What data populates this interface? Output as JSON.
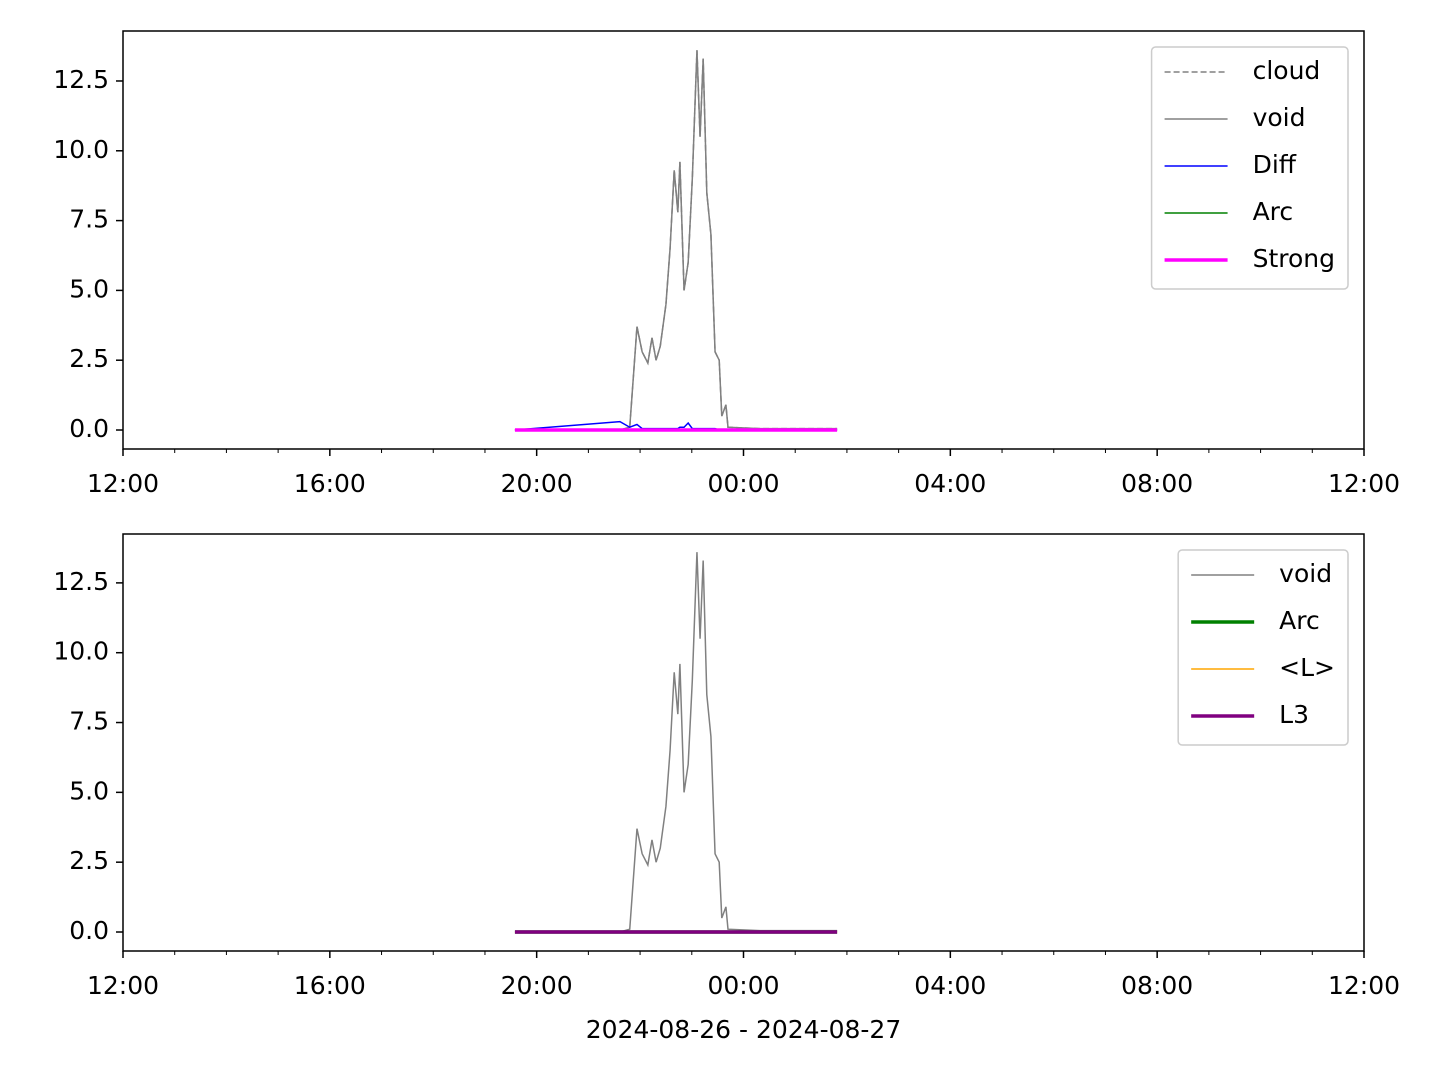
{
  "chart_data": [
    {
      "type": "line",
      "x": [
        19.58,
        21.61,
        21.8,
        21.94,
        22.04,
        22.15,
        22.23,
        22.31,
        22.39,
        22.5,
        22.58,
        22.66,
        22.73,
        22.77,
        22.85,
        22.93,
        23.01,
        23.1,
        23.16,
        23.22,
        23.29,
        23.37,
        23.45,
        23.53,
        23.58,
        23.66,
        23.7,
        24.32,
        25.09,
        25.81
      ],
      "series": [
        {
          "name": "cloud",
          "color": "#808080",
          "linestyle": "dashed",
          "linewidth": 1.5,
          "values": [
            0,
            0,
            0.1,
            3.7,
            2.8,
            2.4,
            3.3,
            2.5,
            3.0,
            4.5,
            6.5,
            9.3,
            7.8,
            9.6,
            5.0,
            6.0,
            9.0,
            13.6,
            10.5,
            13.3,
            8.5,
            7.0,
            2.8,
            2.5,
            0.5,
            0.9,
            0.1,
            0.05,
            0.05,
            0.05
          ]
        },
        {
          "name": "void",
          "color": "#808080",
          "linestyle": "solid",
          "linewidth": 1.5,
          "values": [
            0,
            0,
            0.1,
            3.7,
            2.8,
            2.4,
            3.3,
            2.5,
            3.0,
            4.5,
            6.5,
            9.3,
            7.8,
            9.6,
            5.0,
            6.0,
            9.0,
            13.6,
            10.5,
            13.3,
            8.5,
            7.0,
            2.8,
            2.5,
            0.5,
            0.9,
            0.1,
            0.05,
            0.05,
            0.05
          ]
        },
        {
          "name": "Diff",
          "color": "#0000ff",
          "linestyle": "solid",
          "linewidth": 1.5,
          "values": [
            0,
            0.3,
            0.1,
            0.2,
            0.05,
            0.05,
            0.05,
            0.05,
            0.05,
            0.05,
            0.05,
            0.05,
            0.05,
            0.1,
            0.1,
            0.25,
            0.05,
            0.05,
            0.05,
            0.05,
            0.05,
            0.05,
            0.05,
            0,
            0,
            0,
            0,
            0,
            0,
            0
          ]
        },
        {
          "name": "Arc",
          "color": "#008000",
          "linestyle": "solid",
          "linewidth": 1.5,
          "values": [
            0,
            0,
            0,
            0,
            0,
            0,
            0,
            0,
            0,
            0,
            0,
            0,
            0,
            0,
            0,
            0,
            0,
            0,
            0,
            0,
            0,
            0,
            0,
            0,
            0,
            0,
            0,
            0,
            0,
            0
          ]
        },
        {
          "name": "Strong",
          "color": "#ff00ff",
          "linestyle": "solid",
          "linewidth": 3.5,
          "values": [
            0,
            0,
            0,
            0,
            0,
            0,
            0,
            0,
            0,
            0,
            0,
            0,
            0,
            0,
            0,
            0,
            0,
            0,
            0,
            0,
            0,
            0,
            0,
            0,
            0,
            0,
            0,
            0,
            0,
            0
          ]
        }
      ],
      "xlim": [
        12,
        36
      ],
      "xticks": [
        {
          "value": 12,
          "label": "12:00"
        },
        {
          "value": 16,
          "label": "16:00"
        },
        {
          "value": 20,
          "label": "20:00"
        },
        {
          "value": 24,
          "label": "00:00"
        },
        {
          "value": 28,
          "label": "04:00"
        },
        {
          "value": 32,
          "label": "08:00"
        },
        {
          "value": 36,
          "label": "12:00"
        }
      ],
      "xminorticks": [
        13,
        14,
        15,
        17,
        18,
        19,
        21,
        22,
        23,
        25,
        26,
        27,
        29,
        30,
        31,
        33,
        34,
        35
      ],
      "ylim": [
        -0.68,
        14.29
      ],
      "yticks": [
        {
          "value": 0,
          "label": "0.0"
        },
        2.5,
        {
          "value": 5,
          "label": "5.0"
        },
        7.5,
        {
          "value": 10,
          "label": "10.0"
        },
        12.5
      ],
      "legend": "upper right"
    },
    {
      "type": "line",
      "x": [
        19.58,
        21.61,
        21.8,
        21.94,
        22.04,
        22.15,
        22.23,
        22.31,
        22.39,
        22.5,
        22.58,
        22.66,
        22.73,
        22.77,
        22.85,
        22.93,
        23.01,
        23.1,
        23.16,
        23.22,
        23.29,
        23.37,
        23.45,
        23.53,
        23.58,
        23.66,
        23.7,
        24.32,
        25.09,
        25.81
      ],
      "series": [
        {
          "name": "void",
          "color": "#808080",
          "linestyle": "solid",
          "linewidth": 1.5,
          "values": [
            0,
            0,
            0.1,
            3.7,
            2.8,
            2.4,
            3.3,
            2.5,
            3.0,
            4.5,
            6.5,
            9.3,
            7.8,
            9.6,
            5.0,
            6.0,
            9.0,
            13.6,
            10.5,
            13.3,
            8.5,
            7.0,
            2.8,
            2.5,
            0.5,
            0.9,
            0.1,
            0.05,
            0.05,
            0.05
          ]
        },
        {
          "name": "Arc",
          "color": "#008000",
          "linestyle": "solid",
          "linewidth": 3.5,
          "values": [
            0,
            0,
            0,
            0,
            0,
            0,
            0,
            0,
            0,
            0,
            0,
            0,
            0,
            0,
            0,
            0,
            0,
            0,
            0,
            0,
            0,
            0,
            0,
            0,
            0,
            0,
            0,
            0,
            0,
            0
          ]
        },
        {
          "name": "<L>",
          "color": "#ffa500",
          "linestyle": "solid",
          "linewidth": 1.5,
          "values": [
            0,
            0,
            0,
            0,
            0,
            0,
            0,
            0,
            0,
            0,
            0,
            0,
            0,
            0,
            0,
            0,
            0,
            0,
            0,
            0,
            0,
            0,
            0,
            0,
            0,
            0,
            0,
            0,
            0,
            0
          ]
        },
        {
          "name": "L3",
          "color": "#800080",
          "linestyle": "solid",
          "linewidth": 3.5,
          "values": [
            0,
            0,
            0,
            0,
            0,
            0,
            0,
            0,
            0,
            0,
            0,
            0,
            0,
            0,
            0,
            0,
            0,
            0,
            0,
            0,
            0,
            0,
            0,
            0,
            0,
            0,
            0,
            0,
            0,
            0
          ]
        }
      ],
      "xlim": [
        12,
        36
      ],
      "xticks": [
        {
          "value": 12,
          "label": "12:00"
        },
        {
          "value": 16,
          "label": "16:00"
        },
        {
          "value": 20,
          "label": "20:00"
        },
        {
          "value": 24,
          "label": "00:00"
        },
        {
          "value": 28,
          "label": "04:00"
        },
        {
          "value": 32,
          "label": "08:00"
        },
        {
          "value": 36,
          "label": "12:00"
        }
      ],
      "xminorticks": [
        13,
        14,
        15,
        17,
        18,
        19,
        21,
        22,
        23,
        25,
        26,
        27,
        29,
        30,
        31,
        33,
        34,
        35
      ],
      "ylim": [
        -0.68,
        14.25
      ],
      "yticks": [
        {
          "value": 0,
          "label": "0.0"
        },
        2.5,
        {
          "value": 5,
          "label": "5.0"
        },
        7.5,
        {
          "value": 10,
          "label": "10.0"
        },
        12.5
      ],
      "xlabel": "2024-08-26 - 2024-08-27",
      "legend": "upper right"
    }
  ]
}
